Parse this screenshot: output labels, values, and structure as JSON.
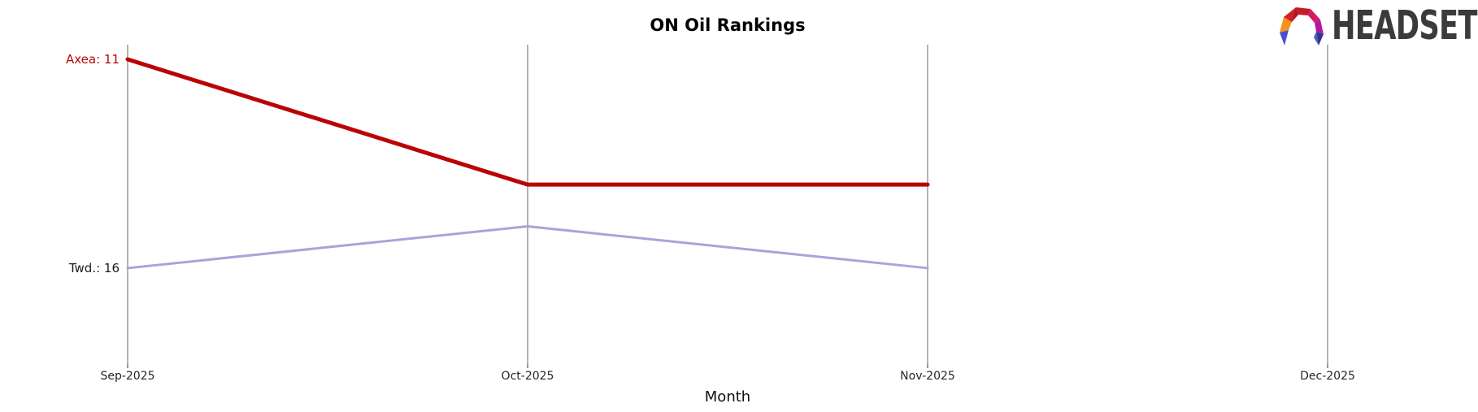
{
  "header": {
    "logo_text": "HEADSET"
  },
  "chart_data": {
    "type": "line",
    "title": "ON Oil Rankings",
    "xlabel": "Month",
    "ylabel": "",
    "categories": [
      "Sep-2025",
      "Oct-2025",
      "Nov-2025",
      "Dec-2025"
    ],
    "series": [
      {
        "name": "Axea",
        "label": "Axea: 11",
        "label_color": "#ba0404",
        "color": "#ba0404",
        "line_width": 5,
        "values": [
          11,
          14,
          14,
          null
        ]
      },
      {
        "name": "Twd.",
        "label": "Twd.: 16",
        "label_color": "#1a1a1a",
        "color": "#aba3d8",
        "line_width": 3,
        "values": [
          16,
          15,
          16,
          null
        ]
      }
    ],
    "y_axis": {
      "inverted": true,
      "range_rank": [
        10.65,
        18.2
      ],
      "ticks_visible": false
    },
    "x_axis": {
      "tick_color": "#555555"
    },
    "grid": {
      "vertical": true,
      "horizontal": false,
      "color": "#b3b3b3"
    },
    "legend": "labels-at-line-start",
    "notes": "No data plotted for Dec-2025; both lines end at Nov-2025"
  },
  "colors": {
    "background": "#ffffff",
    "title_text": "#000000",
    "tick_label_text": "#262626",
    "logo_text": "#3b3b3b"
  }
}
